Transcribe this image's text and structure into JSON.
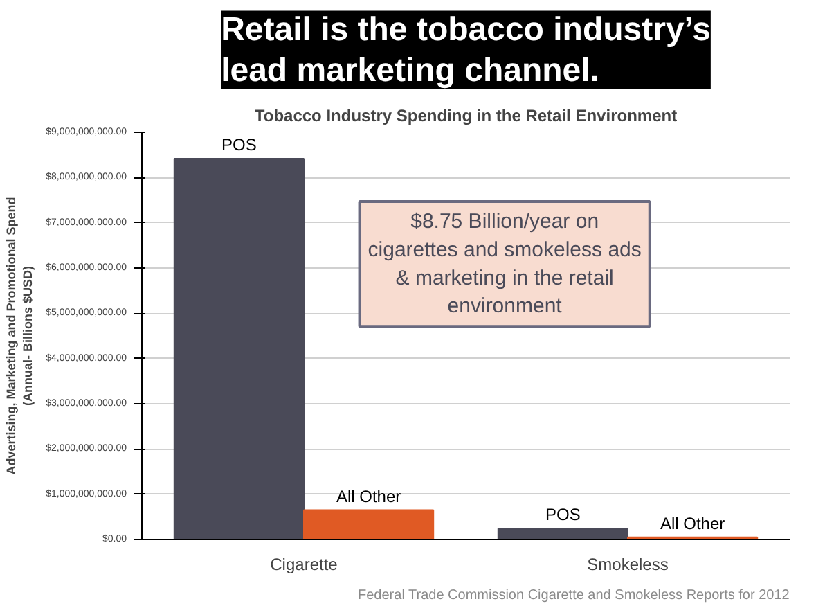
{
  "chart_data": {
    "type": "bar",
    "title": "Retail is the tobacco industry’s lead marketing channel.",
    "subtitle": "Tobacco Industry Spending in the Retail Environment",
    "ylabel": "Advertising, Marketing and Promotional Spend (Annual- Billions $USD)",
    "categories": [
      "Cigarette",
      "Smokeless"
    ],
    "series": [
      {
        "name": "POS",
        "color": "#4a4a58",
        "values": [
          8420000000,
          240000000
        ]
      },
      {
        "name": "All Other",
        "color": "#e05a24",
        "values": [
          650000000,
          50000000
        ]
      }
    ],
    "ylim": [
      0,
      9000000000
    ],
    "yticks": [
      {
        "value": 0,
        "label": "$0.00"
      },
      {
        "value": 1000000000,
        "label": "$1,000,000,000.00"
      },
      {
        "value": 2000000000,
        "label": "$2,000,000,000.00"
      },
      {
        "value": 3000000000,
        "label": "$3,000,000,000.00"
      },
      {
        "value": 4000000000,
        "label": "$4,000,000,000.00"
      },
      {
        "value": 5000000000,
        "label": "$5,000,000,000.00"
      },
      {
        "value": 6000000000,
        "label": "$6,000,000,000.00"
      },
      {
        "value": 7000000000,
        "label": "$7,000,000,000.00"
      },
      {
        "value": 8000000000,
        "label": "$8,000,000,000.00"
      },
      {
        "value": 9000000000,
        "label": "$9,000,000,000.00"
      }
    ],
    "grid": "y",
    "legend": false,
    "annotations": [
      "$8.75 Billion/year on cigarettes and smokeless ads & marketing in the retail environment",
      "Federal Trade Commission Cigarette and Smokeless Reports for 2012"
    ]
  }
}
